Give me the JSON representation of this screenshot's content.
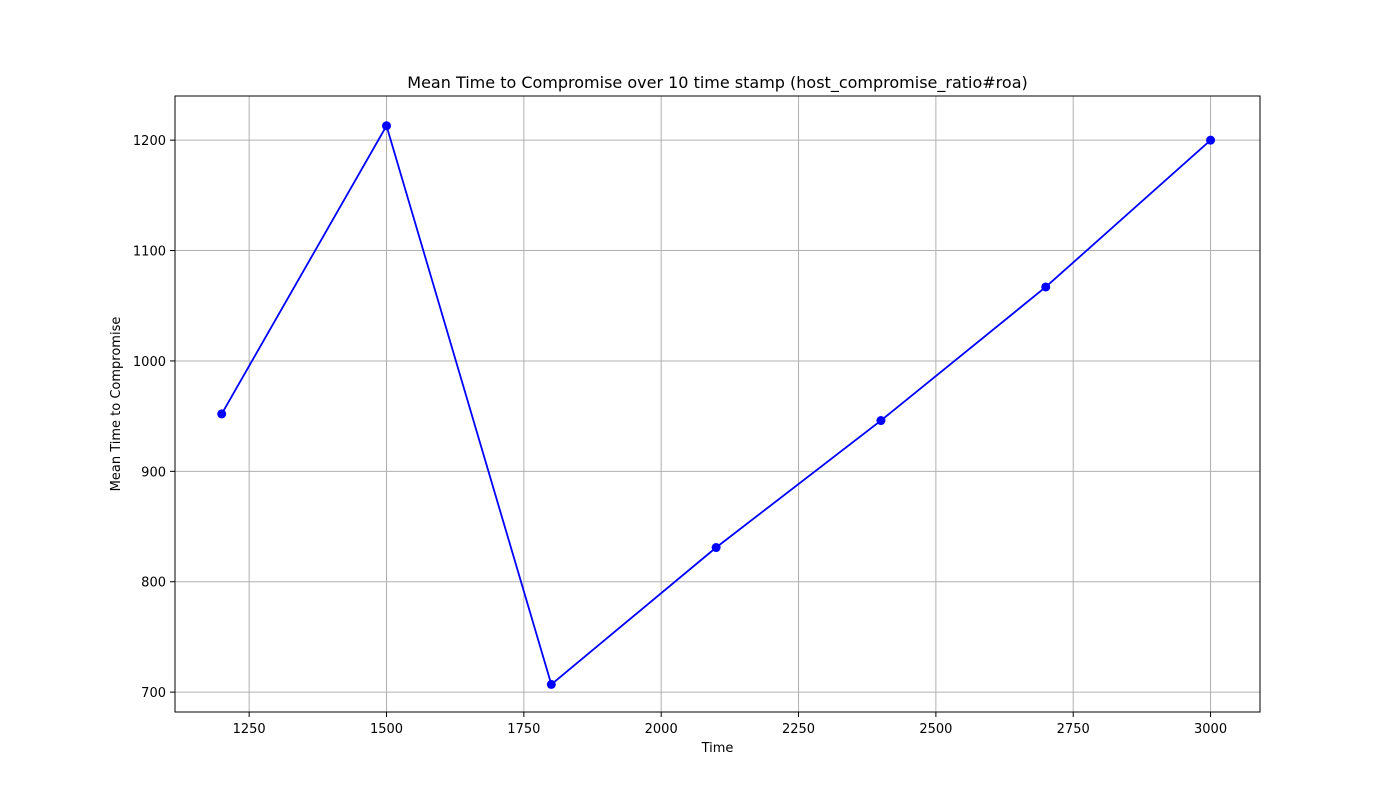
{
  "chart_data": {
    "type": "line",
    "title": "Mean Time to Compromise over 10 time stamp (host_compromise_ratio#roa)",
    "xlabel": "Time",
    "ylabel": "Mean Time to Compromise",
    "xlim": [
      1115,
      3090
    ],
    "ylim": [
      682,
      1240
    ],
    "xticks": [
      1250,
      1500,
      1750,
      2000,
      2250,
      2500,
      2750,
      3000
    ],
    "yticks": [
      700,
      800,
      900,
      1000,
      1100,
      1200
    ],
    "grid": true,
    "series": [
      {
        "color": "#0000ff",
        "marker": "circle",
        "x": [
          1200,
          1500,
          1800,
          2100,
          2400,
          2700,
          3000
        ],
        "y": [
          952,
          1213,
          707,
          831,
          946,
          1067,
          1200
        ]
      }
    ]
  }
}
